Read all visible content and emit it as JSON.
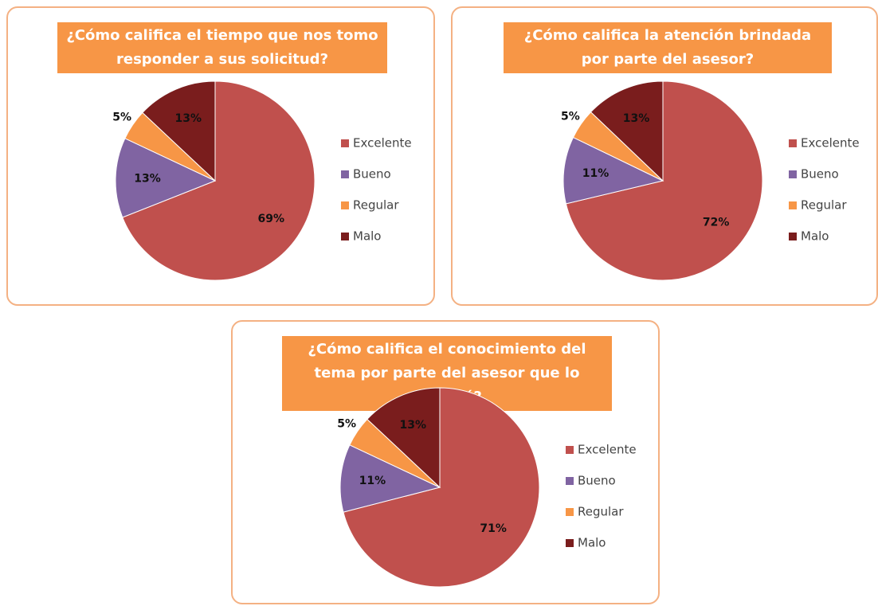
{
  "chart_data": [
    {
      "type": "pie",
      "title": "¿Cómo califica el tiempo que nos tomo responder a sus solicitud?",
      "categories": [
        "Excelente",
        "Bueno",
        "Regular",
        "Malo"
      ],
      "values": [
        69,
        13,
        5,
        13
      ],
      "value_labels": [
        "69%",
        "13%",
        "5%",
        "13%"
      ],
      "colors": [
        "#c0504d",
        "#8064a2",
        "#f79646",
        "#7a1d1d"
      ]
    },
    {
      "type": "pie",
      "title": "¿Cómo califica la atención brindada por parte del asesor?",
      "categories": [
        "Excelente",
        "Bueno",
        "Regular",
        "Malo"
      ],
      "values": [
        72,
        11,
        5,
        13
      ],
      "value_labels": [
        "72%",
        "11%",
        "5%",
        "13%"
      ],
      "colors": [
        "#c0504d",
        "#8064a2",
        "#f79646",
        "#7a1d1d"
      ]
    },
    {
      "type": "pie",
      "title": "¿Cómo califica el conocimiento del tema por parte del asesor que lo atendió?",
      "categories": [
        "Excelente",
        "Bueno",
        "Regular",
        "Malo"
      ],
      "values": [
        71,
        11,
        5,
        13
      ],
      "value_labels": [
        "71%",
        "11%",
        "5%",
        "13%"
      ],
      "colors": [
        "#c0504d",
        "#8064a2",
        "#f79646",
        "#7a1d1d"
      ]
    }
  ]
}
